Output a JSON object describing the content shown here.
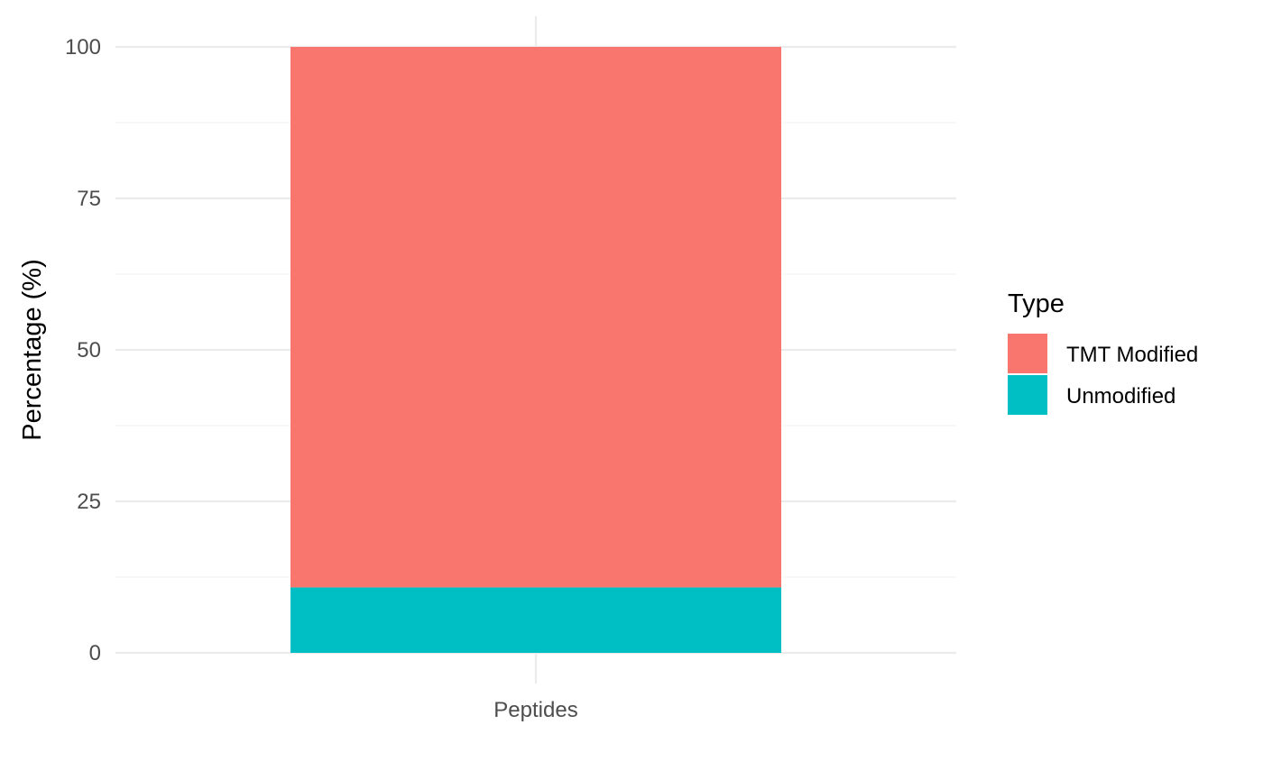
{
  "chart_data": {
    "type": "bar",
    "stacked": true,
    "categories": [
      "Peptides"
    ],
    "series": [
      {
        "name": "TMT Modified",
        "values": [
          89.2
        ],
        "color": "#F8766D"
      },
      {
        "name": "Unmodified",
        "values": [
          10.8
        ],
        "color": "#00BFC4"
      }
    ],
    "xlabel": "",
    "ylabel": "Percentage (%)",
    "ylim": [
      0,
      100
    ],
    "yticks": [
      0,
      25,
      50,
      75,
      100
    ],
    "grid": true,
    "legend": {
      "title": "Type",
      "position": "right"
    }
  }
}
